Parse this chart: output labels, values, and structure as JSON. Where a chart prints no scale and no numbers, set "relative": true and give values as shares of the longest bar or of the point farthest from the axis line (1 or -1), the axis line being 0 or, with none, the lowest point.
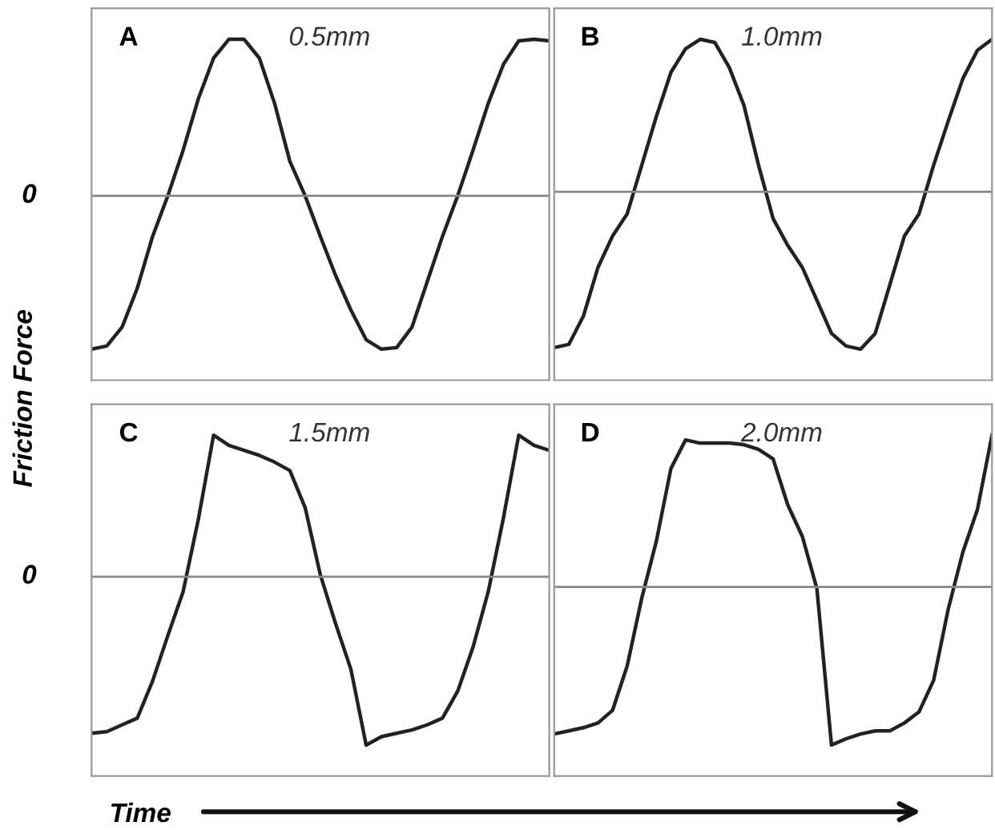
{
  "chart_data": [
    {
      "type": "line",
      "title": "A",
      "annotations": [
        "0.5mm"
      ],
      "ylabel": "Friction Force",
      "relative": true,
      "legend": false,
      "marker": "none",
      "line_style": "solid",
      "categories": [
        null,
        null,
        null,
        null,
        null,
        null,
        null,
        null,
        null,
        null,
        null,
        null,
        null,
        null,
        null,
        null,
        null,
        null,
        null,
        null,
        null,
        null,
        null,
        null,
        null,
        null,
        null,
        null,
        null,
        null,
        null
      ],
      "series": [
        {
          "color": "#222222",
          "values": [
            -0.98,
            -0.96,
            -0.84,
            -0.59,
            -0.26,
            0,
            0.29,
            0.62,
            0.88,
            1,
            1,
            0.88,
            0.59,
            0.22,
            0,
            -0.26,
            -0.51,
            -0.73,
            -0.92,
            -0.98,
            -0.97,
            -0.84,
            -0.55,
            -0.26,
            0,
            0.29,
            0.59,
            0.84,
            0.99,
            1,
            0.99
          ]
        }
      ],
      "ref_lines": [
        {
          "axis": "y",
          "value": 0,
          "label": "0",
          "color": "#888888"
        }
      ]
    },
    {
      "type": "line",
      "title": "B",
      "annotations": [
        "1.0mm"
      ],
      "relative": true,
      "legend": false,
      "marker": "none",
      "line_style": "solid",
      "categories": [
        null,
        null,
        null,
        null,
        null,
        null,
        null,
        null,
        null,
        null,
        null,
        null,
        null,
        null,
        null,
        null,
        null,
        null,
        null,
        null,
        null,
        null,
        null,
        null,
        null,
        null,
        null,
        null,
        null,
        null,
        null
      ],
      "series": [
        {
          "color": "#222222",
          "values": [
            -0.99,
            -0.97,
            -0.79,
            -0.48,
            -0.28,
            -0.14,
            0.17,
            0.48,
            0.76,
            0.91,
            0.97,
            0.95,
            0.79,
            0.55,
            0.17,
            -0.17,
            -0.34,
            -0.48,
            -0.69,
            -0.9,
            -0.98,
            -1,
            -0.9,
            -0.59,
            -0.28,
            -0.14,
            0.17,
            0.45,
            0.72,
            0.9,
            0.97
          ]
        }
      ],
      "ref_lines": [
        {
          "axis": "y",
          "value": 0,
          "color": "#888888"
        }
      ]
    },
    {
      "type": "line",
      "title": "C",
      "annotations": [
        "1.5mm"
      ],
      "xlabel": "Time",
      "relative": true,
      "legend": false,
      "marker": "none",
      "line_style": "solid",
      "categories": [
        null,
        null,
        null,
        null,
        null,
        null,
        null,
        null,
        null,
        null,
        null,
        null,
        null,
        null,
        null,
        null,
        null,
        null,
        null,
        null,
        null,
        null,
        null,
        null,
        null,
        null,
        null,
        null,
        null,
        null,
        null
      ],
      "series": [
        {
          "color": "#222222",
          "values": [
            -0.93,
            -0.92,
            -0.88,
            -0.84,
            -0.62,
            -0.35,
            -0.09,
            0.34,
            0.84,
            0.78,
            0.75,
            0.72,
            0.68,
            0.63,
            0.41,
            0.01,
            -0.28,
            -0.55,
            -1,
            -0.95,
            -0.93,
            -0.91,
            -0.88,
            -0.84,
            -0.68,
            -0.42,
            -0.09,
            0.35,
            0.84,
            0.78,
            0.75
          ]
        }
      ],
      "ref_lines": [
        {
          "axis": "y",
          "value": 0,
          "label": "0",
          "color": "#888888"
        }
      ]
    },
    {
      "type": "line",
      "title": "D",
      "annotations": [
        "2.0mm"
      ],
      "relative": true,
      "legend": false,
      "marker": "none",
      "line_style": "solid",
      "categories": [
        null,
        null,
        null,
        null,
        null,
        null,
        null,
        null,
        null,
        null,
        null,
        null,
        null,
        null,
        null,
        null,
        null,
        null,
        null,
        null,
        null,
        null,
        null,
        null,
        null,
        null,
        null,
        null,
        null,
        null,
        null
      ],
      "series": [
        {
          "color": "#222222",
          "values": [
            -0.93,
            -0.91,
            -0.89,
            -0.86,
            -0.78,
            -0.5,
            -0.07,
            0.29,
            0.75,
            0.93,
            0.91,
            0.91,
            0.91,
            0.9,
            0.87,
            0.81,
            0.52,
            0.32,
            -0.01,
            -1,
            -0.96,
            -0.93,
            -0.91,
            -0.91,
            -0.86,
            -0.79,
            -0.59,
            -0.14,
            0.22,
            0.49,
            0.96
          ]
        }
      ],
      "ref_lines": [
        {
          "axis": "y",
          "value": 0,
          "color": "#888888"
        }
      ]
    }
  ]
}
